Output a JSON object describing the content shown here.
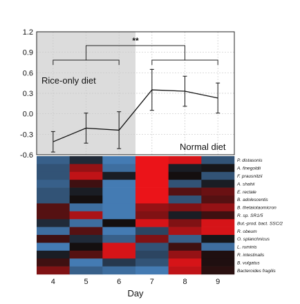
{
  "chart_data": [
    {
      "type": "line",
      "x": [
        4,
        5,
        6,
        7,
        8,
        9
      ],
      "y": [
        -0.41,
        -0.21,
        -0.24,
        0.35,
        0.33,
        0.23
      ],
      "yerr": [
        0.15,
        0.22,
        0.27,
        0.3,
        0.22,
        0.22
      ],
      "ylim": [
        -0.6,
        1.2
      ],
      "yticks": [
        "1.2",
        "0.9",
        "0.6",
        "0.3",
        "0.0",
        "-0.3",
        "-0.6"
      ],
      "grid": true,
      "shaded_region": {
        "from_day": 4,
        "to_day": 6.5,
        "color": "#dcdcdc"
      },
      "annotations": {
        "rice_label": "Rice-only diet",
        "normal_label": "Normal diet",
        "significance": "**"
      },
      "brackets": {
        "left_group": [
          4,
          6
        ],
        "right_group": [
          7,
          9
        ],
        "top": [
          5,
          8
        ]
      }
    },
    {
      "type": "heatmap",
      "x": [
        "4",
        "5",
        "6",
        "7",
        "8",
        "9"
      ],
      "xlabel": "Day",
      "rows": [
        "P. distasonis",
        "A. finegoldii",
        "F. prausnitzii",
        "A. shahii",
        "E. rectale",
        "B. adolescentis",
        "B. thetaiotaomicron",
        "R. sp. SR1/5",
        "But.-prod. bact. SSC/2",
        "R. obeum",
        "O. splanchnicus",
        "L. ruminis",
        "R. intestinalis",
        "B. vulgatus",
        "Bacteroides fragilis"
      ],
      "values": [
        [
          -0.6,
          -0.2,
          -0.8,
          1.0,
          0.9,
          -0.5
        ],
        [
          -0.5,
          0.6,
          -0.7,
          1.0,
          -0.1,
          -0.05
        ],
        [
          -0.5,
          0.8,
          -0.1,
          1.0,
          0.0,
          -0.5
        ],
        [
          -0.6,
          0.2,
          -0.8,
          1.0,
          -0.5,
          -0.1
        ],
        [
          -0.5,
          -0.1,
          -0.8,
          1.0,
          0.3,
          0.4
        ],
        [
          -0.5,
          0.0,
          -0.8,
          1.0,
          -0.5,
          0.3
        ],
        [
          0.3,
          -0.7,
          -0.8,
          0.6,
          0.5,
          0.6
        ],
        [
          0.3,
          0.7,
          -0.8,
          0.5,
          -0.1,
          0.2
        ],
        [
          -0.2,
          -0.7,
          0.0,
          0.9,
          0.5,
          0.9
        ],
        [
          -0.7,
          0.3,
          -0.8,
          -0.4,
          0.7,
          0.9
        ],
        [
          0.2,
          -0.2,
          -0.6,
          0.5,
          -0.6,
          -0.05
        ],
        [
          -0.8,
          0.0,
          0.9,
          -0.5,
          0.2,
          -0.7
        ],
        [
          -0.1,
          0.3,
          0.9,
          -0.4,
          0.6,
          0.05
        ],
        [
          0.2,
          -0.8,
          -0.3,
          -0.5,
          0.9,
          0.05
        ],
        [
          0.5,
          -0.6,
          -0.7,
          -0.8,
          0.8,
          0.1
        ]
      ]
    }
  ]
}
